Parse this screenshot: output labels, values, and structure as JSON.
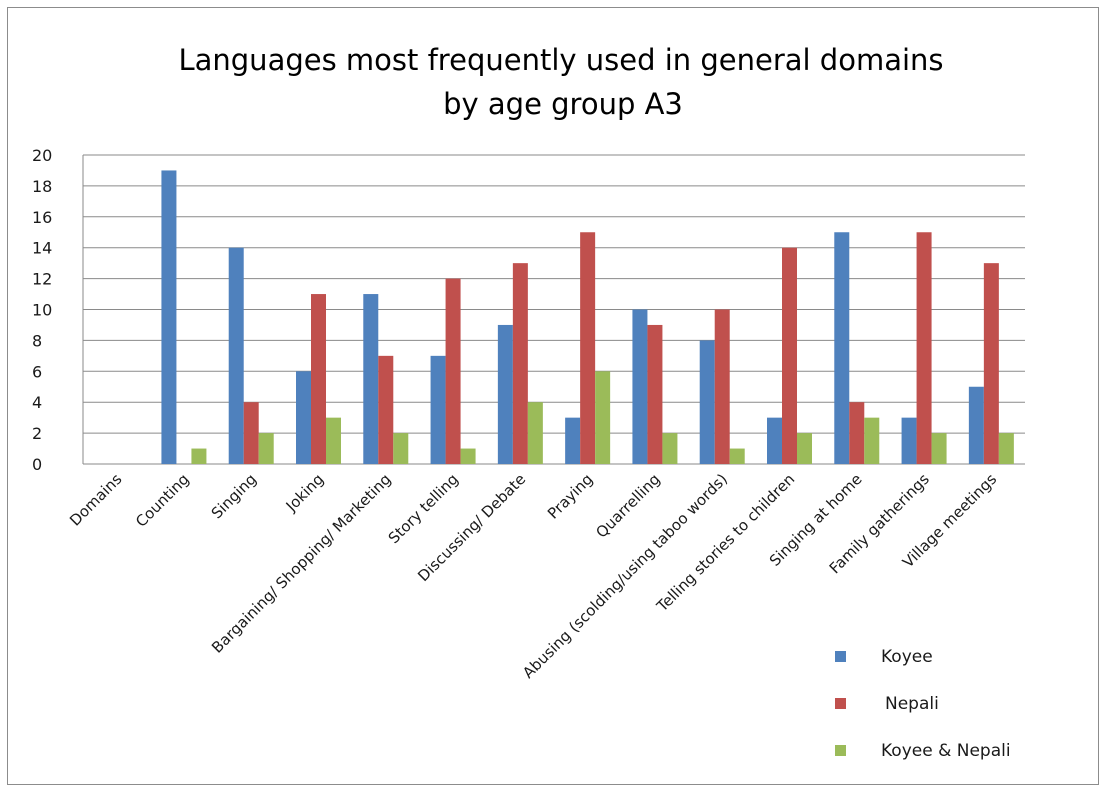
{
  "chart_data": {
    "type": "bar",
    "title_lines": [
      "Languages most frequently used in general domains",
      "by  age group A3"
    ],
    "categories": [
      "Domains",
      "Counting",
      "Singing",
      "Joking",
      "Bargaining/ Shopping/ Marketing",
      "Story telling",
      "Discussing/ Debate",
      "Praying",
      "Quarrelling",
      "Abusing (scolding/using taboo words)",
      "Telling stories to children",
      "Singing at home",
      "Family gatherings",
      "Village meetings"
    ],
    "series": [
      {
        "name": "Koyee",
        "color": "#4f81bd",
        "values": [
          0,
          19,
          14,
          6,
          11,
          7,
          9,
          3,
          10,
          8,
          3,
          15,
          3,
          5
        ]
      },
      {
        "name": "Nepali",
        "color": "#c0504d",
        "values": [
          0,
          0,
          4,
          11,
          7,
          12,
          13,
          15,
          9,
          10,
          14,
          4,
          15,
          13
        ]
      },
      {
        "name": "Koyee & Nepali",
        "color": "#9bbb59",
        "values": [
          0,
          1,
          2,
          3,
          2,
          1,
          4,
          6,
          2,
          1,
          2,
          3,
          2,
          2
        ]
      }
    ],
    "y_ticks": [
      "0",
      "2",
      "4",
      "6",
      "8",
      "10",
      "12",
      "14",
      "16",
      "18",
      "20"
    ],
    "ylim": [
      0,
      20
    ],
    "grid": true,
    "legend_position": "bottom-right"
  }
}
